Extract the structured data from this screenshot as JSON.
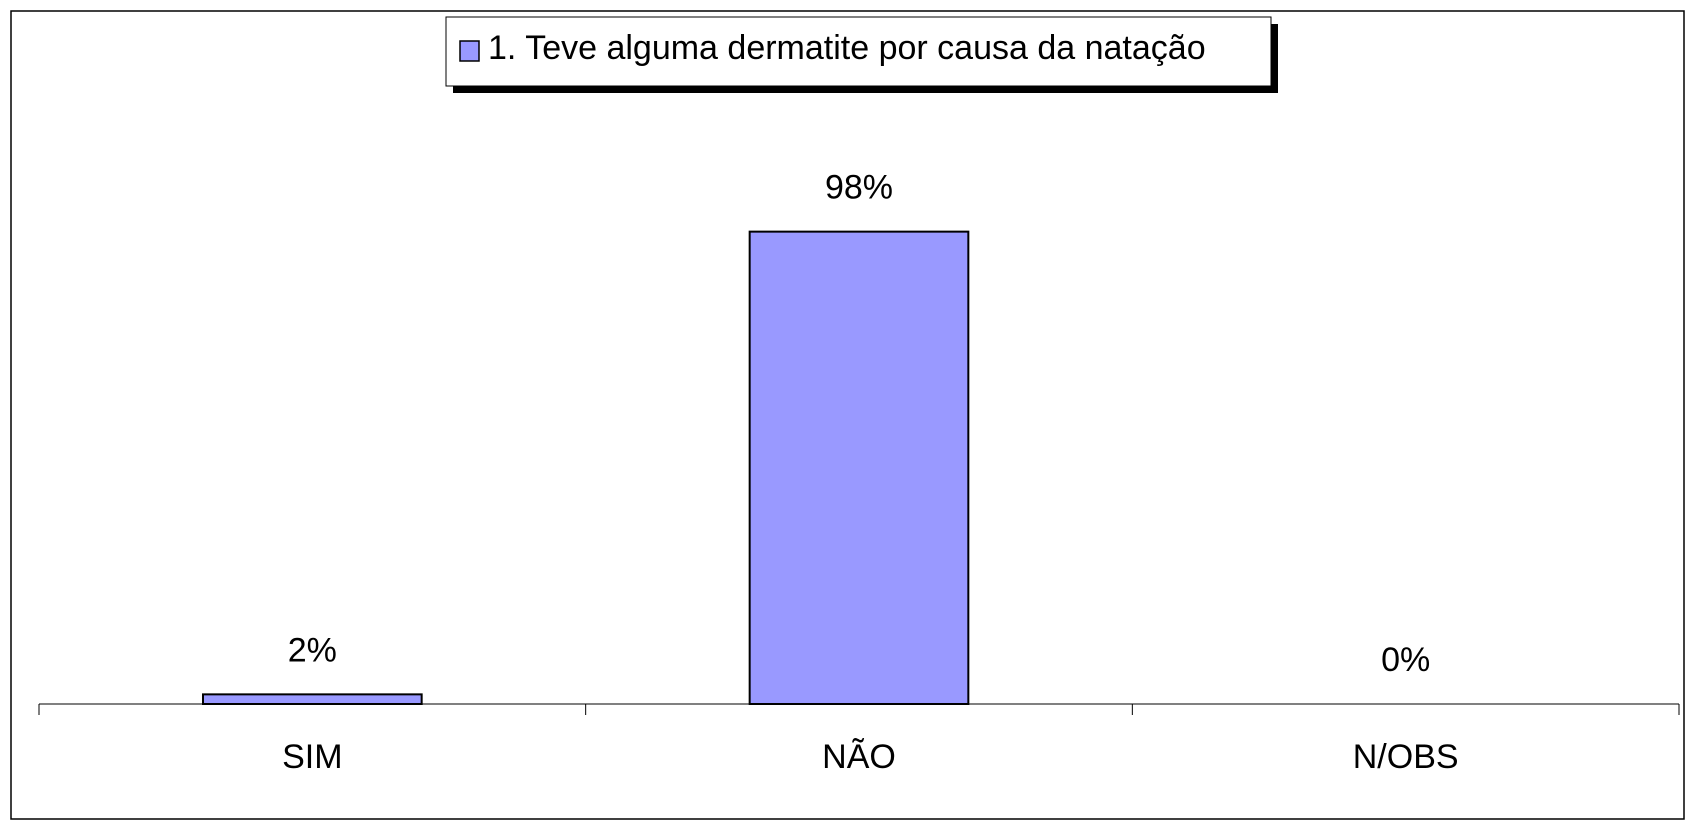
{
  "chart_data": {
    "type": "bar",
    "categories": [
      "SIM",
      "NÃO",
      "N/OBS"
    ],
    "series": [
      {
        "name": "1. Teve alguma dermatite por causa da natação",
        "color": "#9999ff",
        "values": [
          2,
          98,
          0
        ],
        "value_labels": [
          "2%",
          "98%",
          "0%"
        ]
      }
    ],
    "ylim": [
      0,
      100
    ],
    "legend": "top"
  }
}
